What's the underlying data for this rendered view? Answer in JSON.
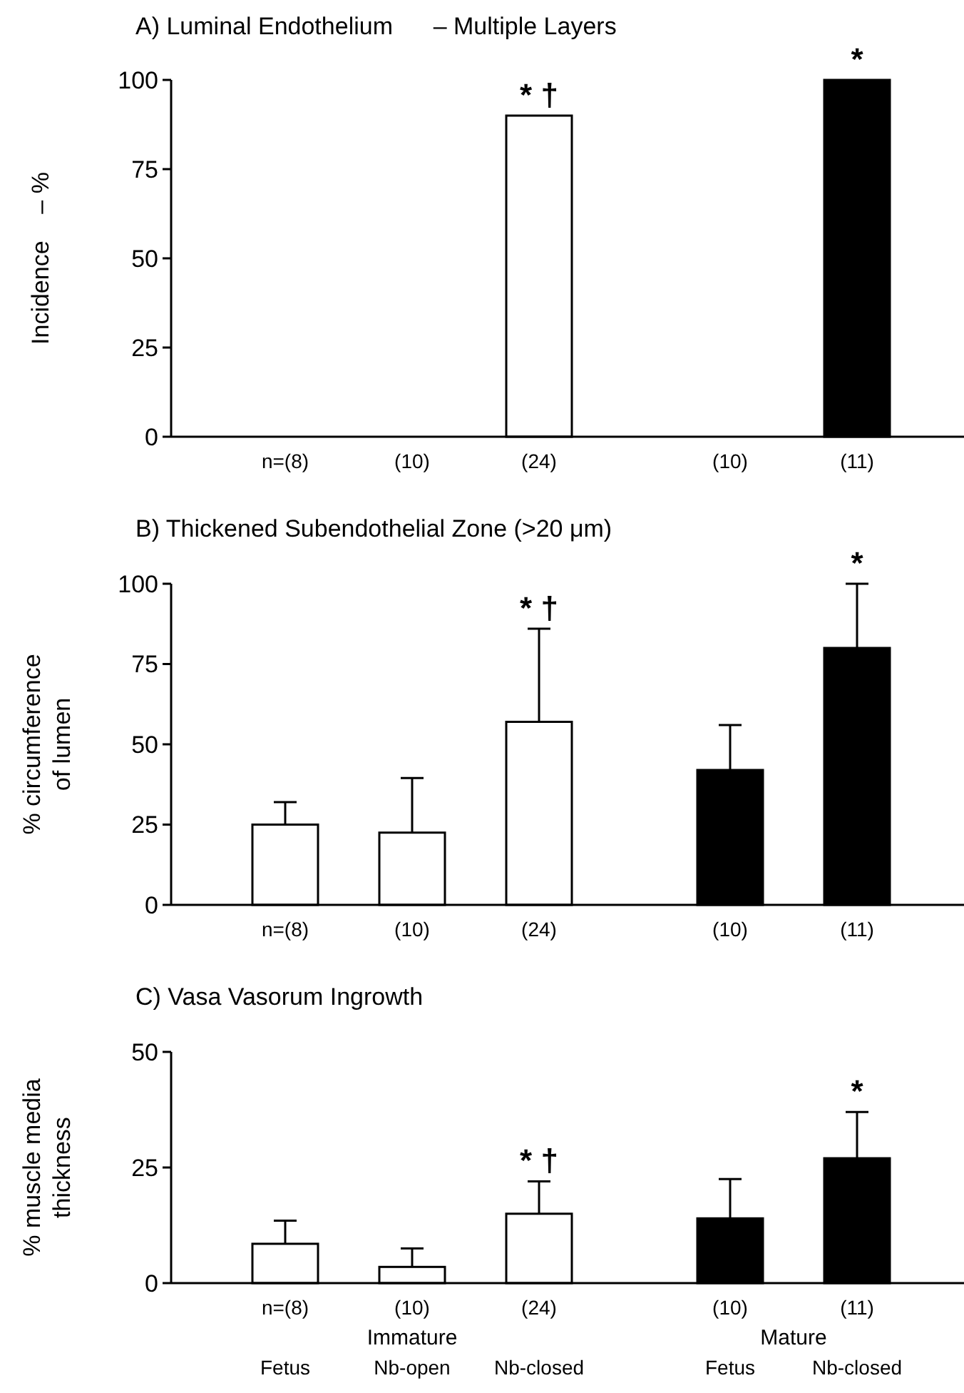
{
  "chart_data": [
    {
      "type": "bar",
      "title": "A) Luminal Endothelium      – Multiple Layers",
      "ylabel": "Incidence    – %",
      "categories": [
        "n=(8)",
        "(10)",
        "(24)",
        "(10)",
        "(11)"
      ],
      "values": [
        0,
        0,
        90,
        0,
        100
      ],
      "colors": [
        "#ffffff",
        "#ffffff",
        "#ffffff",
        "#000000",
        "#000000"
      ],
      "ylim": [
        0,
        100
      ],
      "yticks": [
        0,
        25,
        50,
        75,
        100
      ],
      "value_labels": [
        null,
        null,
        "* †",
        null,
        "*"
      ]
    },
    {
      "type": "bar",
      "title": "B) Thickened Subendothelial Zone (>20 μm)",
      "ylabel": "% circumference\nof lumen",
      "categories": [
        "n=(8)",
        "(10)",
        "(24)",
        "(10)",
        "(11)"
      ],
      "values": [
        25,
        22.5,
        57,
        42,
        80
      ],
      "errors": [
        [
          25,
          32
        ],
        [
          22.5,
          39.5
        ],
        [
          57,
          86
        ],
        [
          42,
          56
        ],
        [
          80,
          100
        ]
      ],
      "colors": [
        "#ffffff",
        "#ffffff",
        "#ffffff",
        "#000000",
        "#000000"
      ],
      "ylim": [
        0,
        100
      ],
      "yticks": [
        0,
        25,
        50,
        75,
        100
      ],
      "value_labels": [
        null,
        null,
        "* †",
        null,
        "*"
      ]
    },
    {
      "type": "bar",
      "title": "C) Vasa Vasorum Ingrowth",
      "ylabel": "% muscle media\nthickness",
      "categories": [
        "n=(8)\n\nFetus",
        "(10)\n\nNb-open",
        "(24)\n\nNb-closed",
        "(10)\n\nFetus",
        "(11)\n\nNb-closed"
      ],
      "values": [
        8.5,
        3.5,
        15,
        14,
        27
      ],
      "errors": [
        [
          8.5,
          13.5
        ],
        [
          3.5,
          7.5
        ],
        [
          15,
          22
        ],
        [
          14,
          22.5
        ],
        [
          27,
          37
        ]
      ],
      "colors": [
        "#ffffff",
        "#ffffff",
        "#ffffff",
        "#000000",
        "#000000"
      ],
      "ylim": [
        0,
        50
      ],
      "yticks": [
        0,
        25,
        50
      ],
      "value_labels": [
        null,
        null,
        "* †",
        null,
        "*"
      ],
      "annotations": [
        "Immature",
        "Mature"
      ]
    }
  ]
}
